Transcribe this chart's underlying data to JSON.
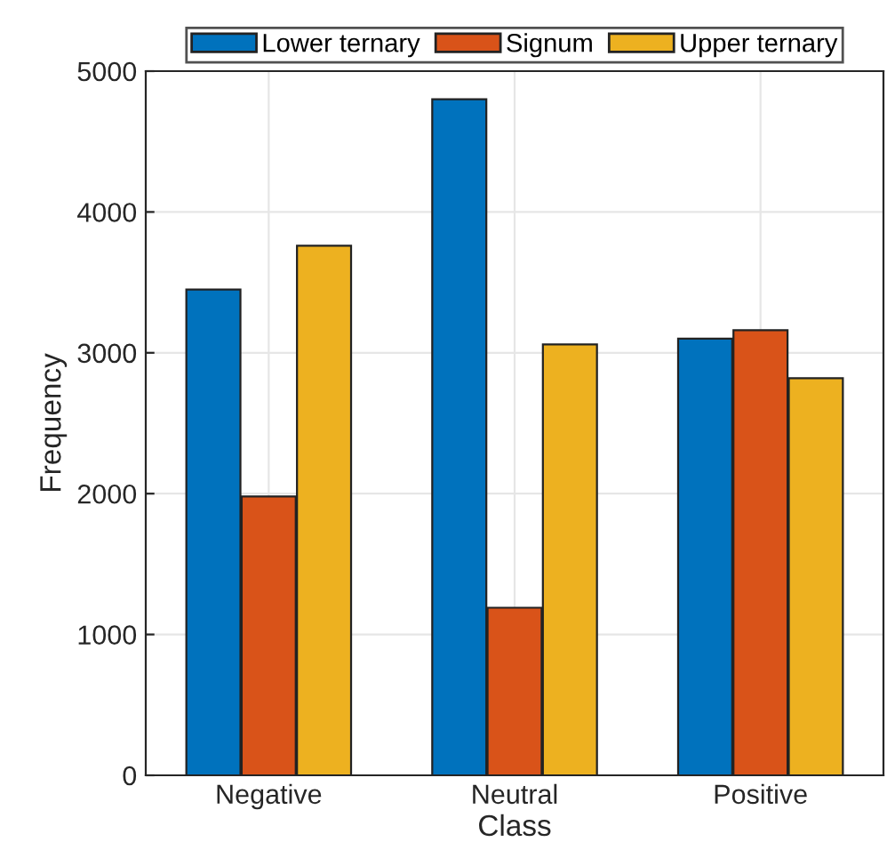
{
  "chart_data": {
    "type": "bar",
    "xlabel": "Class",
    "ylabel": "Frequency",
    "categories": [
      "Negative",
      "Neutral",
      "Positive"
    ],
    "series": [
      {
        "name": "Lower ternary",
        "color": "#0072bd",
        "values": [
          3450,
          4800,
          3100
        ]
      },
      {
        "name": "Signum",
        "color": "#d95319",
        "values": [
          1980,
          1190,
          3160
        ]
      },
      {
        "name": "Upper ternary",
        "color": "#edb120",
        "values": [
          3760,
          3060,
          2820
        ]
      }
    ],
    "ylim": [
      0,
      5000
    ],
    "yticks": [
      0,
      1000,
      2000,
      3000,
      4000,
      5000
    ],
    "grid": true,
    "legend": "top"
  }
}
